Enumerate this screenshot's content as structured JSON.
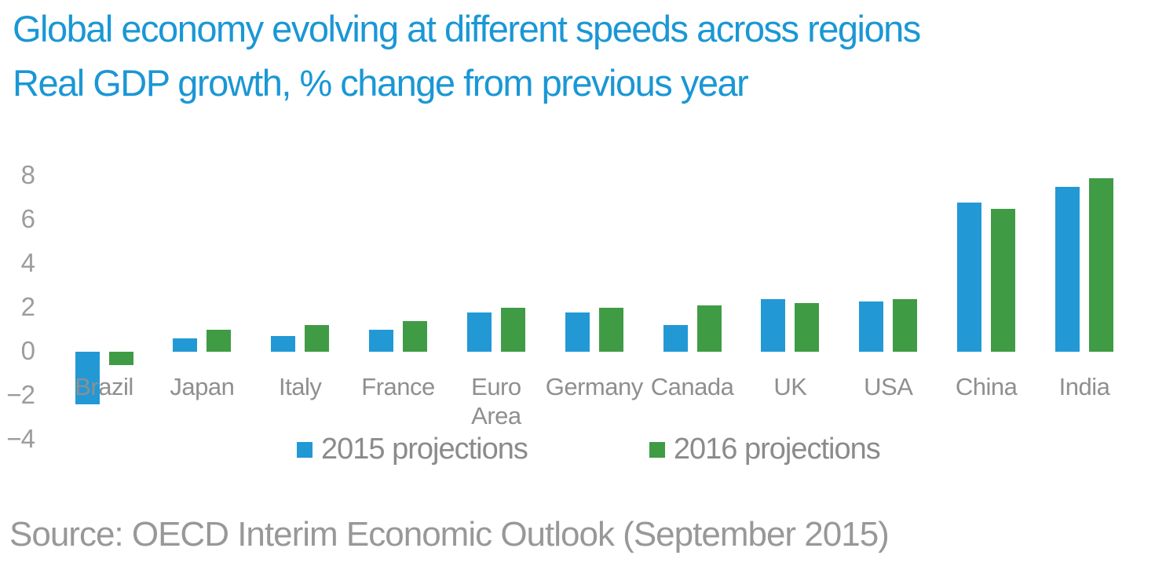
{
  "header": {
    "title_line1": "Global economy evolving at different speeds across regions",
    "title_line2": "Real GDP growth, % change from previous year"
  },
  "footer": {
    "source": "Source: OECD Interim Economic Outlook (September 2015)"
  },
  "legend": {
    "items": [
      {
        "label": "2015 projections",
        "color": "#2299D5"
      },
      {
        "label": "2016 projections",
        "color": "#409B45"
      }
    ]
  },
  "colors": {
    "title_blue": "#1A97D5",
    "bar_blue": "#2299D5",
    "bar_green": "#409B45",
    "axis_text_gray": "#9C9C9C",
    "label_gray": "#8F8F8F"
  },
  "chart_data": {
    "type": "bar",
    "title": "Global economy evolving at different speeds across regions",
    "subtitle": "Real GDP growth, % change from previous year",
    "categories": [
      "Brazil",
      "Japan",
      "Italy",
      "France",
      "Euro Area",
      "Germany",
      "Canada",
      "UK",
      "USA",
      "China",
      "India"
    ],
    "series": [
      {
        "name": "2015 projections",
        "color": "#2299D5",
        "values": [
          -2.4,
          0.6,
          0.7,
          1.0,
          1.8,
          1.8,
          1.2,
          2.4,
          2.3,
          6.8,
          7.5
        ]
      },
      {
        "name": "2016 projections",
        "color": "#409B45",
        "values": [
          -0.6,
          1.0,
          1.2,
          1.4,
          2.0,
          2.0,
          2.1,
          2.2,
          2.4,
          6.5,
          7.9
        ]
      }
    ],
    "yticks": [
      8,
      6,
      4,
      2,
      0,
      -2,
      -4
    ],
    "ylim": [
      -4,
      8
    ],
    "grid": false,
    "axis_lines": false,
    "legend_position": "bottom-center",
    "wrap_labels": [
      "Euro Area"
    ]
  }
}
